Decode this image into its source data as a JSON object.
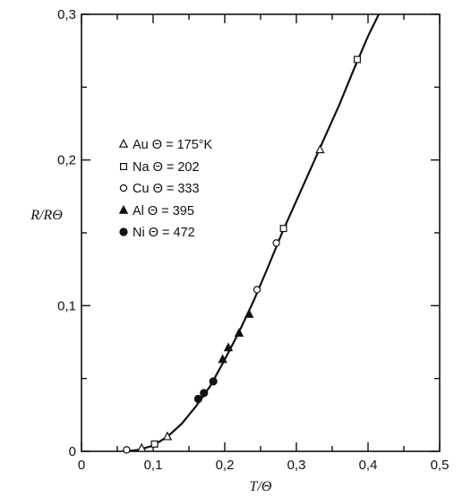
{
  "chart_data": {
    "type": "scatter",
    "xlabel": "T/Θ",
    "ylabel": "R/RΘ",
    "xlim": [
      0,
      0.5
    ],
    "ylim": [
      0,
      0.3
    ],
    "x_ticks": [
      "0",
      "0,1",
      "0,2",
      "0,3",
      "0,4",
      "0,5"
    ],
    "y_ticks": [
      "0",
      "0,1",
      "0,2",
      "0,3"
    ],
    "grid": false,
    "legend_position": "upper-left",
    "series": [
      {
        "name": "Au Θ = 175°K",
        "marker": "triangle-open",
        "points": [
          [
            0.084,
            0.002
          ],
          [
            0.12,
            0.01
          ],
          [
            0.333,
            0.207
          ]
        ]
      },
      {
        "name": "Na Θ = 202",
        "marker": "square-open",
        "points": [
          [
            0.102,
            0.005
          ],
          [
            0.282,
            0.153
          ],
          [
            0.385,
            0.269
          ]
        ]
      },
      {
        "name": "Cu Θ = 333",
        "marker": "circle-open",
        "points": [
          [
            0.063,
            0.001
          ],
          [
            0.245,
            0.111
          ],
          [
            0.272,
            0.143
          ]
        ]
      },
      {
        "name": "Al Θ = 395",
        "marker": "triangle-filled",
        "points": [
          [
            0.197,
            0.063
          ],
          [
            0.205,
            0.071
          ],
          [
            0.22,
            0.081
          ],
          [
            0.234,
            0.094
          ]
        ]
      },
      {
        "name": "Ni Θ = 472",
        "marker": "circle-filled",
        "points": [
          [
            0.163,
            0.036
          ],
          [
            0.171,
            0.04
          ],
          [
            0.184,
            0.048
          ]
        ]
      }
    ],
    "fit_curve": [
      [
        0.06,
        0.0
      ],
      [
        0.08,
        0.001
      ],
      [
        0.1,
        0.004
      ],
      [
        0.12,
        0.01
      ],
      [
        0.14,
        0.019
      ],
      [
        0.16,
        0.031
      ],
      [
        0.18,
        0.045
      ],
      [
        0.2,
        0.063
      ],
      [
        0.22,
        0.082
      ],
      [
        0.24,
        0.103
      ],
      [
        0.26,
        0.126
      ],
      [
        0.28,
        0.15
      ],
      [
        0.3,
        0.172
      ],
      [
        0.32,
        0.194
      ],
      [
        0.34,
        0.216
      ],
      [
        0.36,
        0.238
      ],
      [
        0.38,
        0.262
      ],
      [
        0.4,
        0.285
      ],
      [
        0.415,
        0.3
      ]
    ]
  }
}
